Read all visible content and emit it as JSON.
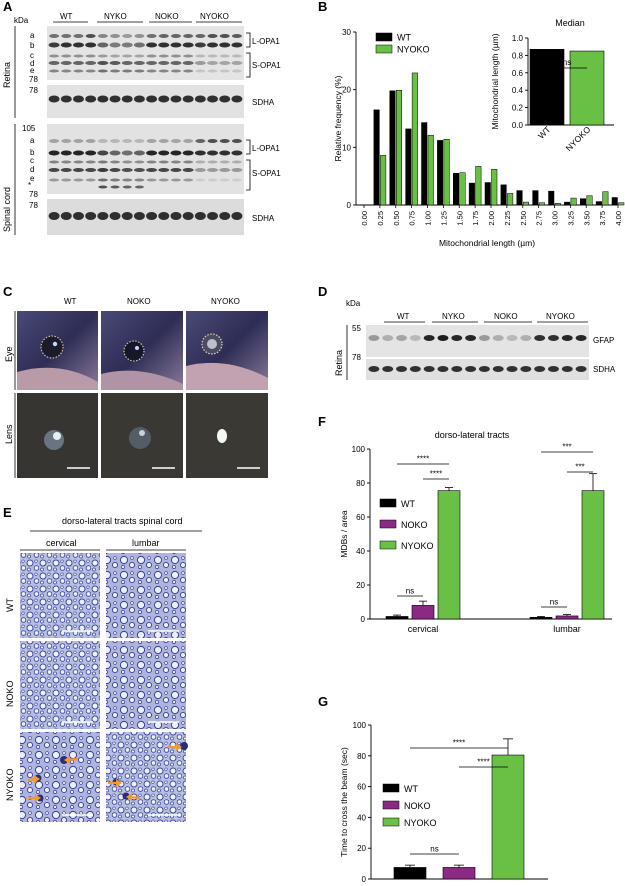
{
  "panels": {
    "A": {
      "label": "A",
      "kda": "kDa",
      "lane_groups": [
        "WT",
        "NYKO",
        "NOKO",
        "NYOKO"
      ],
      "retina": {
        "label": "Retina",
        "marker_top": "78",
        "marker_sdha": "78",
        "bands": [
          "a",
          "b",
          "c",
          "d",
          "e"
        ],
        "l_opa1": "L-OPA1",
        "s_opa1": "S-OPA1",
        "sdha": "SDHA"
      },
      "spinal": {
        "label": "Spinal cord",
        "marker_top": "105",
        "marker_mid": "78",
        "marker_sdha": "78",
        "bands": [
          "a",
          "b",
          "c",
          "d",
          "e"
        ],
        "asterisk": "*",
        "l_opa1": "L-OPA1",
        "s_opa1": "S-OPA1",
        "sdha": "SDHA"
      }
    },
    "B": {
      "label": "B"
    },
    "C": {
      "label": "C",
      "columns": [
        "WT",
        "NOKO",
        "NYOKO"
      ],
      "row_eye": "Eye",
      "row_lens": "Lens"
    },
    "D": {
      "label": "D",
      "kda": "kDa",
      "lane_groups": [
        "WT",
        "NYKO",
        "NOKO",
        "NYOKO"
      ],
      "tissue": "Retina",
      "marker_1": "55",
      "marker_2": "78",
      "gfap": "GFAP",
      "sdha": "SDHA"
    },
    "E": {
      "label": "E",
      "title": "dorso-lateral tracts spinal cord",
      "columns": [
        "cervical",
        "lumbar"
      ],
      "rows": [
        "WT",
        "NOKO",
        "NYOKO"
      ]
    },
    "F": {
      "label": "F"
    },
    "G": {
      "label": "G"
    }
  },
  "chart_data": [
    {
      "id": "B-histogram",
      "type": "bar",
      "xlabel": "Mitochondrial length (µm)",
      "ylabel": "Relative frequency (%)",
      "ylim": [
        0,
        30
      ],
      "yticks": [
        "0",
        "10",
        "20",
        "30"
      ],
      "categories": [
        "0.00",
        "0.25",
        "0.50",
        "0.75",
        "1.00",
        "1.25",
        "1.50",
        "1.75",
        "2.00",
        "2.25",
        "2.50",
        "2.75",
        "3.00",
        "3.25",
        "3.50",
        "3.75",
        "4.00"
      ],
      "series": [
        {
          "name": "WT",
          "color": "#000000",
          "values": [
            0,
            16.5,
            19.8,
            13.2,
            14.3,
            11.2,
            5.5,
            3.8,
            3.9,
            3.5,
            2.5,
            2.5,
            2.4,
            0.5,
            1.1,
            0.6,
            1.3
          ]
        },
        {
          "name": "NYOKO",
          "color": "#6abf45",
          "values": [
            0,
            8.6,
            19.9,
            22.9,
            12.1,
            11.4,
            5.6,
            6.7,
            6.2,
            2.0,
            0.5,
            0.4,
            0.3,
            1.2,
            1.6,
            2.3,
            0.4
          ]
        }
      ],
      "legend": "top-left"
    },
    {
      "id": "B-median",
      "type": "bar",
      "title": "Median",
      "ylabel": "Mitochondrial length (µm)",
      "ylim": [
        0,
        1.0
      ],
      "yticks": [
        "0.0",
        "0.2",
        "0.4",
        "0.6",
        "0.8",
        "1.0"
      ],
      "categories": [
        "WT",
        "NYOKO"
      ],
      "values": [
        0.87,
        0.85
      ],
      "colors": [
        "#000000",
        "#6abf45"
      ],
      "annotation": "ns"
    },
    {
      "id": "F-mdbs",
      "type": "bar",
      "title": "dorso-lateral tracts",
      "ylabel": "MDBs / area",
      "ylim": [
        0,
        100
      ],
      "yticks": [
        "0",
        "20",
        "40",
        "60",
        "80",
        "100"
      ],
      "categories": [
        "cervical",
        "lumbar"
      ],
      "series": [
        {
          "name": "WT",
          "color": "#000000",
          "values": [
            1.5,
            1.0
          ],
          "errors": [
            0.8,
            0.5
          ]
        },
        {
          "name": "NOKO",
          "color": "#8b2a85",
          "values": [
            8.0,
            1.8
          ],
          "errors": [
            2.5,
            0.8
          ]
        },
        {
          "name": "NYOKO",
          "color": "#6abf45",
          "values": [
            75.5,
            75.5
          ],
          "errors": [
            1.8,
            10.0
          ]
        }
      ],
      "significance": [
        {
          "group": "cervical",
          "pair": [
            "WT",
            "NYOKO"
          ],
          "label": "****"
        },
        {
          "group": "cervical",
          "pair": [
            "NOKO",
            "NYOKO"
          ],
          "label": "****"
        },
        {
          "group": "cervical",
          "pair": [
            "WT",
            "NOKO"
          ],
          "label": "ns"
        },
        {
          "group": "lumbar",
          "pair": [
            "WT",
            "NYOKO"
          ],
          "label": "***"
        },
        {
          "group": "lumbar",
          "pair": [
            "NOKO",
            "NYOKO"
          ],
          "label": "***"
        },
        {
          "group": "lumbar",
          "pair": [
            "WT",
            "NOKO"
          ],
          "label": "ns"
        }
      ],
      "legend": "left"
    },
    {
      "id": "G-beam",
      "type": "bar",
      "ylabel": "Time to cross the beam (sec)",
      "ylim": [
        0,
        100
      ],
      "yticks": [
        "0",
        "20",
        "40",
        "60",
        "80",
        "100"
      ],
      "categories": [
        "WT",
        "NOKO",
        "NYOKO"
      ],
      "values": [
        7.5,
        7.5,
        80.5
      ],
      "errors": [
        1.5,
        1.5,
        10.5
      ],
      "colors": [
        "#000000",
        "#8b2a85",
        "#6abf45"
      ],
      "significance": [
        {
          "pair": [
            "WT",
            "NYOKO"
          ],
          "label": "****"
        },
        {
          "pair": [
            "NOKO",
            "NYOKO"
          ],
          "label": "****"
        },
        {
          "pair": [
            "WT",
            "NOKO"
          ],
          "label": "ns"
        }
      ],
      "legend": "left"
    }
  ]
}
